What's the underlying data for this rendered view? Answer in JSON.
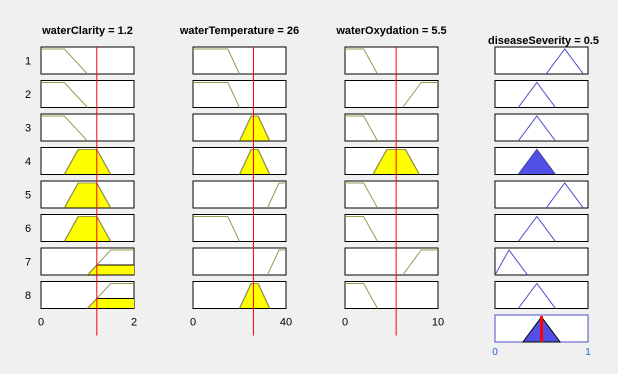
{
  "columns": [
    {
      "title": "waterClarity = 1.2",
      "kind": "input",
      "range": [
        0,
        2
      ],
      "tick_labels": [
        "0",
        "2"
      ],
      "value": 1.2,
      "rules": [
        {
          "mf": [
            -1,
            0,
            0.5,
            1.0
          ],
          "fired": false
        },
        {
          "mf": [
            -1,
            0,
            0.5,
            1.0
          ],
          "fired": false
        },
        {
          "mf": [
            -1,
            0,
            0.5,
            1.0
          ],
          "fired": false
        },
        {
          "mf": [
            0.5,
            0.8,
            1.2,
            1.5
          ],
          "fired": true,
          "level": 1.0
        },
        {
          "mf": [
            0.5,
            0.8,
            1.2,
            1.5
          ],
          "fired": true,
          "level": 1.0
        },
        {
          "mf": [
            0.5,
            0.8,
            1.2,
            1.5
          ],
          "fired": true,
          "level": 1.0
        },
        {
          "mf": [
            1.0,
            1.5,
            2.0,
            3.0
          ],
          "fired": true,
          "level": 0.4
        },
        {
          "mf": [
            1.0,
            1.5,
            2.0,
            3.0
          ],
          "fired": true,
          "level": 0.4
        }
      ]
    },
    {
      "title": "waterTemperature = 26",
      "kind": "input",
      "range": [
        0,
        40
      ],
      "tick_labels": [
        "0",
        "40"
      ],
      "value": 26,
      "rules": [
        {
          "mf": [
            -10,
            0,
            15,
            20
          ],
          "fired": false
        },
        {
          "mf": [
            -10,
            0,
            15,
            20
          ],
          "fired": false
        },
        {
          "mf": [
            20,
            25,
            28,
            33
          ],
          "fired": true,
          "level": 1.0
        },
        {
          "mf": [
            20,
            25,
            28,
            33
          ],
          "fired": true,
          "level": 1.0
        },
        {
          "mf": [
            32,
            37,
            40,
            50
          ],
          "fired": false
        },
        {
          "mf": [
            -10,
            0,
            15,
            20
          ],
          "fired": false
        },
        {
          "mf": [
            32,
            37,
            40,
            50
          ],
          "fired": false
        },
        {
          "mf": [
            20,
            25,
            28,
            33
          ],
          "fired": true,
          "level": 1.0
        }
      ]
    },
    {
      "title": "waterOxydation = 5.5",
      "kind": "input",
      "range": [
        0,
        10
      ],
      "tick_labels": [
        "0",
        "10"
      ],
      "value": 5.5,
      "rules": [
        {
          "mf": [
            -1,
            0,
            2,
            3.5
          ],
          "fired": false
        },
        {
          "mf": [
            6.2,
            8.2,
            10,
            12
          ],
          "fired": false
        },
        {
          "mf": [
            -1,
            0,
            2,
            3.5
          ],
          "fired": false
        },
        {
          "mf": [
            3.0,
            4.5,
            6.5,
            8.0
          ],
          "fired": true,
          "level": 1.0
        },
        {
          "mf": [
            -1,
            0,
            2,
            3.5
          ],
          "fired": false
        },
        {
          "mf": [
            -1,
            0,
            2,
            3.5
          ],
          "fired": false
        },
        {
          "mf": [
            6.2,
            8.2,
            10,
            12
          ],
          "fired": false
        },
        {
          "mf": [
            -1,
            0,
            2,
            3.5
          ],
          "fired": false
        }
      ]
    },
    {
      "title": "diseaseSeverity = 0.5",
      "kind": "output",
      "range": [
        0,
        1
      ],
      "tick_labels": [
        "0",
        "1"
      ],
      "value": 0.5,
      "rules": [
        {
          "mf": [
            0.55,
            0.75,
            0.95
          ],
          "fired": false
        },
        {
          "mf": [
            0.25,
            0.45,
            0.65
          ],
          "fired": false
        },
        {
          "mf": [
            0.25,
            0.45,
            0.65
          ],
          "fired": false
        },
        {
          "mf": [
            0.25,
            0.45,
            0.65
          ],
          "fired": true,
          "level": 1.0
        },
        {
          "mf": [
            0.55,
            0.75,
            0.95
          ],
          "fired": false
        },
        {
          "mf": [
            0.25,
            0.45,
            0.65
          ],
          "fired": false
        },
        {
          "mf": [
            0.0,
            0.15,
            0.35
          ],
          "fired": false
        },
        {
          "mf": [
            0.25,
            0.45,
            0.65
          ],
          "fired": false
        }
      ],
      "aggregate": {
        "mf": [
          0.3,
          0.5,
          0.7
        ]
      }
    }
  ],
  "rule_numbers": [
    "1",
    "2",
    "3",
    "4",
    "5",
    "6",
    "7",
    "8"
  ],
  "colors": {
    "background": "#f0f0f0",
    "plot_bg": "#ffffff",
    "input_line": "#9a9a55",
    "input_fill": "#ffff00",
    "output_line": "#4d4dc8",
    "output_fill": "#5050e6",
    "indicator": "#ff0000",
    "output_tick": "#1f5fd1",
    "text": "#000000"
  }
}
